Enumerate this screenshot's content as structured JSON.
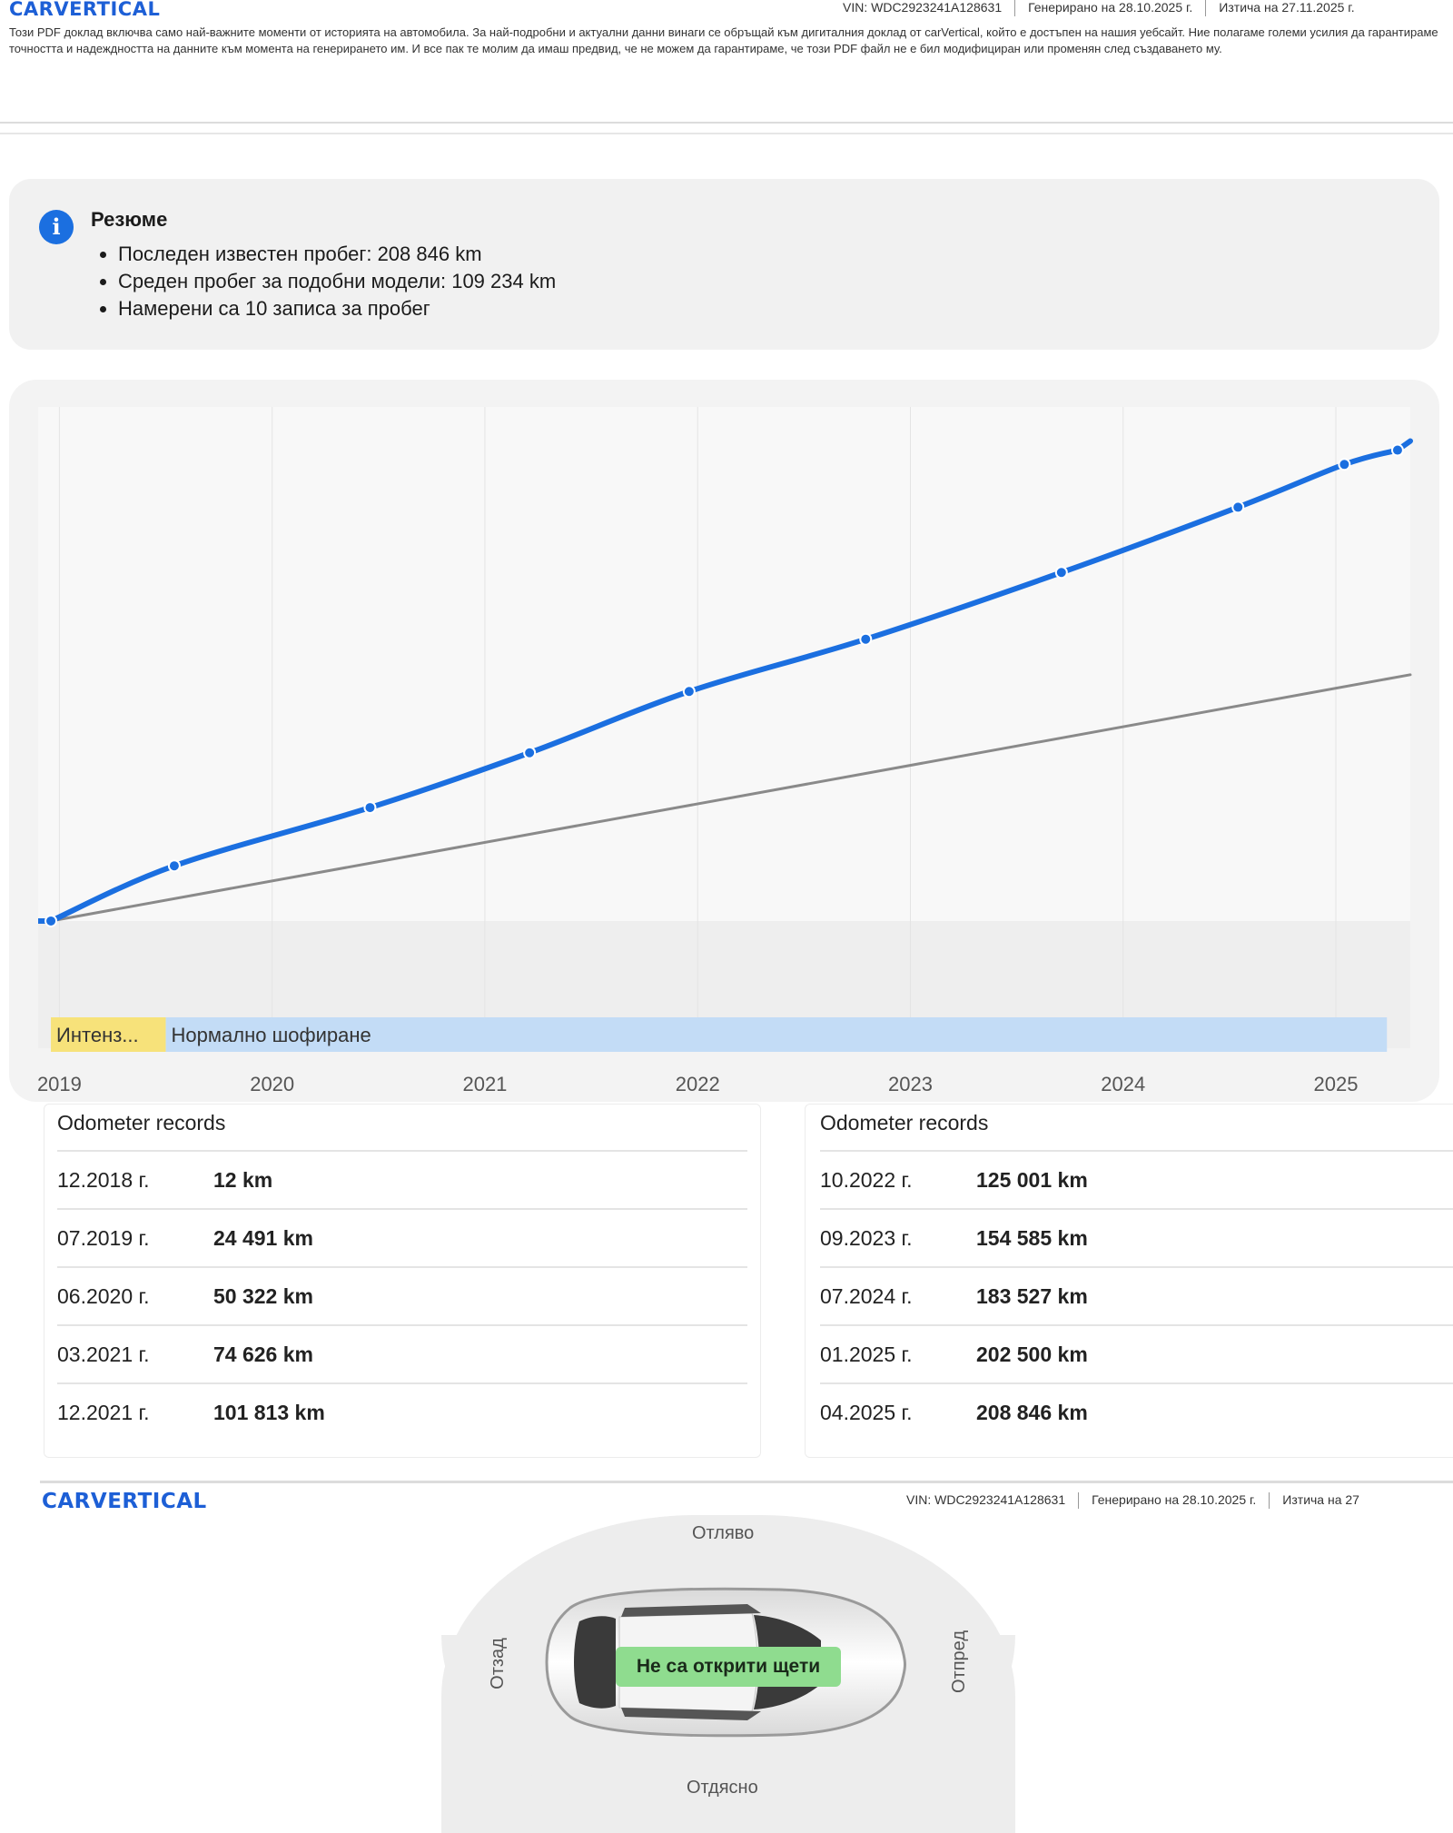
{
  "header1": {
    "logo": "CARVERTICAL",
    "vin": "VIN:  WDC2923241A128631",
    "generated": "Генерирано на  28.10.2025 г.",
    "expires": "Изтича на  27.11.2025 г.",
    "disclaimer": "Този PDF доклад включва само най-важните моменти от историята на автомобила. За най-подробни и актуални данни винаги се обръщай към дигиталния доклад от carVertical, който е достъпен на нашия уебсайт. Ние полагаме големи усилия да гарантираме точността и надеждността на данните към момента на генерирането им. И все пак те молим да имаш предвид, че не можем да гарантираме, че този PDF файл не е бил модифициран или променян след създаването му."
  },
  "summary": {
    "title": "Резюме",
    "items": [
      "Последен известен пробег: 208 846 km",
      "Среден пробег за подобни модели: 109 234 km",
      "Намерени са 10 записа за пробег"
    ]
  },
  "chart_data": {
    "type": "line",
    "x_ticks": [
      "2019",
      "2020",
      "2021",
      "2022",
      "2023",
      "2024",
      "2025"
    ],
    "series": [
      {
        "values": [
          [
            2018.96,
            12
          ],
          [
            2019.54,
            24491
          ],
          [
            2020.46,
            50322
          ],
          [
            2021.21,
            74626
          ],
          [
            2021.96,
            101813
          ],
          [
            2022.79,
            125001
          ],
          [
            2023.71,
            154585
          ],
          [
            2024.54,
            183527
          ],
          [
            2025.04,
            202500
          ],
          [
            2025.29,
            208846
          ]
        ],
        "color": "#1b6fe0"
      },
      {
        "values": [
          [
            2018.96,
            12
          ],
          [
            2025.35,
            109234
          ]
        ],
        "color": "#8a8a8a"
      }
    ],
    "x_range": [
      2018.9,
      2025.35
    ],
    "y_range": [
      0,
      228000
    ],
    "bands": [
      {
        "label": "Интенз...",
        "color": "#f7e27a",
        "from": 2018.96,
        "to": 2019.5
      },
      {
        "label": "Нормално шофиране",
        "color": "#c3dcf6",
        "from": 2019.5,
        "to": 2025.24
      }
    ],
    "grid": true
  },
  "records_left": {
    "title": "Odometer records",
    "rows": [
      {
        "date": "12.2018 г.",
        "value": "12 km"
      },
      {
        "date": "07.2019 г.",
        "value": "24 491 km"
      },
      {
        "date": "06.2020 г.",
        "value": "50 322 km"
      },
      {
        "date": "03.2021 г.",
        "value": "74 626 km"
      },
      {
        "date": "12.2021 г.",
        "value": "101 813 km"
      }
    ]
  },
  "records_right": {
    "title": "Odometer records",
    "rows": [
      {
        "date": "10.2022 г.",
        "value": "125 001 km"
      },
      {
        "date": "09.2023 г.",
        "value": "154 585 km"
      },
      {
        "date": "07.2024 г.",
        "value": "183 527 km"
      },
      {
        "date": "01.2025 г.",
        "value": "202 500 km"
      },
      {
        "date": "04.2025 г.",
        "value": "208 846 km"
      }
    ]
  },
  "header2": {
    "logo": "CARVERTICAL",
    "vin": "VIN:  WDC2923241A128631",
    "generated": "Генерирано на  28.10.2025 г.",
    "expires": "Изтича на  27"
  },
  "damage": {
    "top": "Отляво",
    "bottom": "Отдясно",
    "left": "Отзад",
    "right": "Отпред",
    "badge": "Не са открити щети"
  },
  "colors": {
    "accent": "#1b6fe0",
    "badge": "#8fdc8f"
  }
}
